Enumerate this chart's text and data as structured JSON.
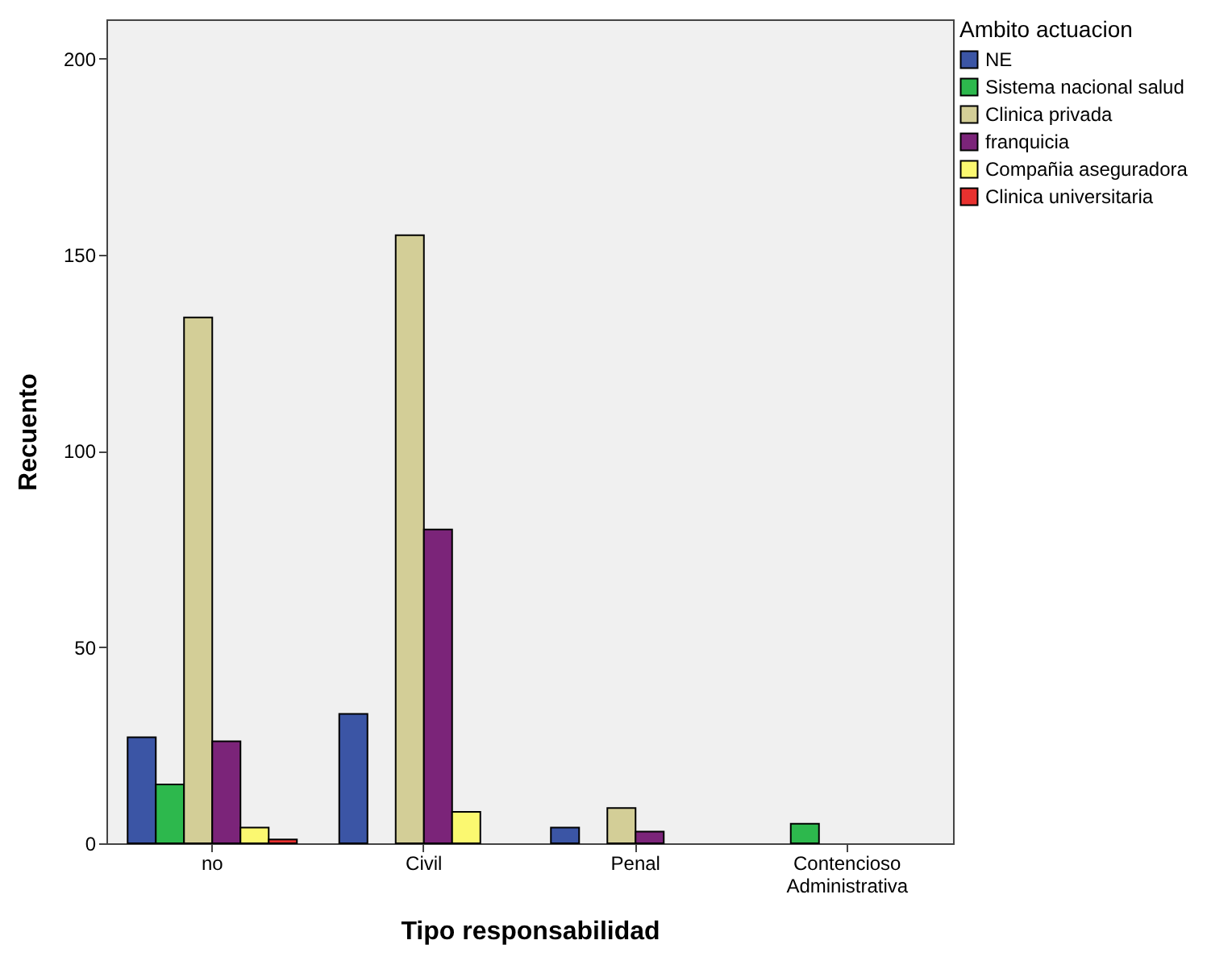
{
  "chart_data": {
    "type": "bar",
    "xlabel": "Tipo responsabilidad",
    "ylabel": "Recuento",
    "legend_title": "Ambito actuacion",
    "categories": [
      "no",
      "Civil",
      "Penal",
      "Contencioso Administrativa"
    ],
    "series": [
      {
        "name": "NE",
        "color": "#3b55a5",
        "values": [
          27,
          33,
          4,
          null
        ]
      },
      {
        "name": "Sistema nacional salud",
        "color": "#2db84d",
        "values": [
          15,
          null,
          null,
          5
        ]
      },
      {
        "name": "Clinica privada",
        "color": "#d3ce97",
        "values": [
          134,
          155,
          9,
          null
        ]
      },
      {
        "name": "franquicia",
        "color": "#7b2479",
        "values": [
          26,
          80,
          3,
          null
        ]
      },
      {
        "name": "Compañia aseguradora",
        "color": "#fbf870",
        "values": [
          4,
          8,
          null,
          null
        ]
      },
      {
        "name": "Clinica universitaria",
        "color": "#e8312f",
        "values": [
          1,
          null,
          null,
          null
        ]
      }
    ],
    "ylim": [
      0,
      210
    ],
    "yticks": [
      0,
      50,
      100,
      150,
      200
    ],
    "grid": false,
    "legend": "top right"
  }
}
